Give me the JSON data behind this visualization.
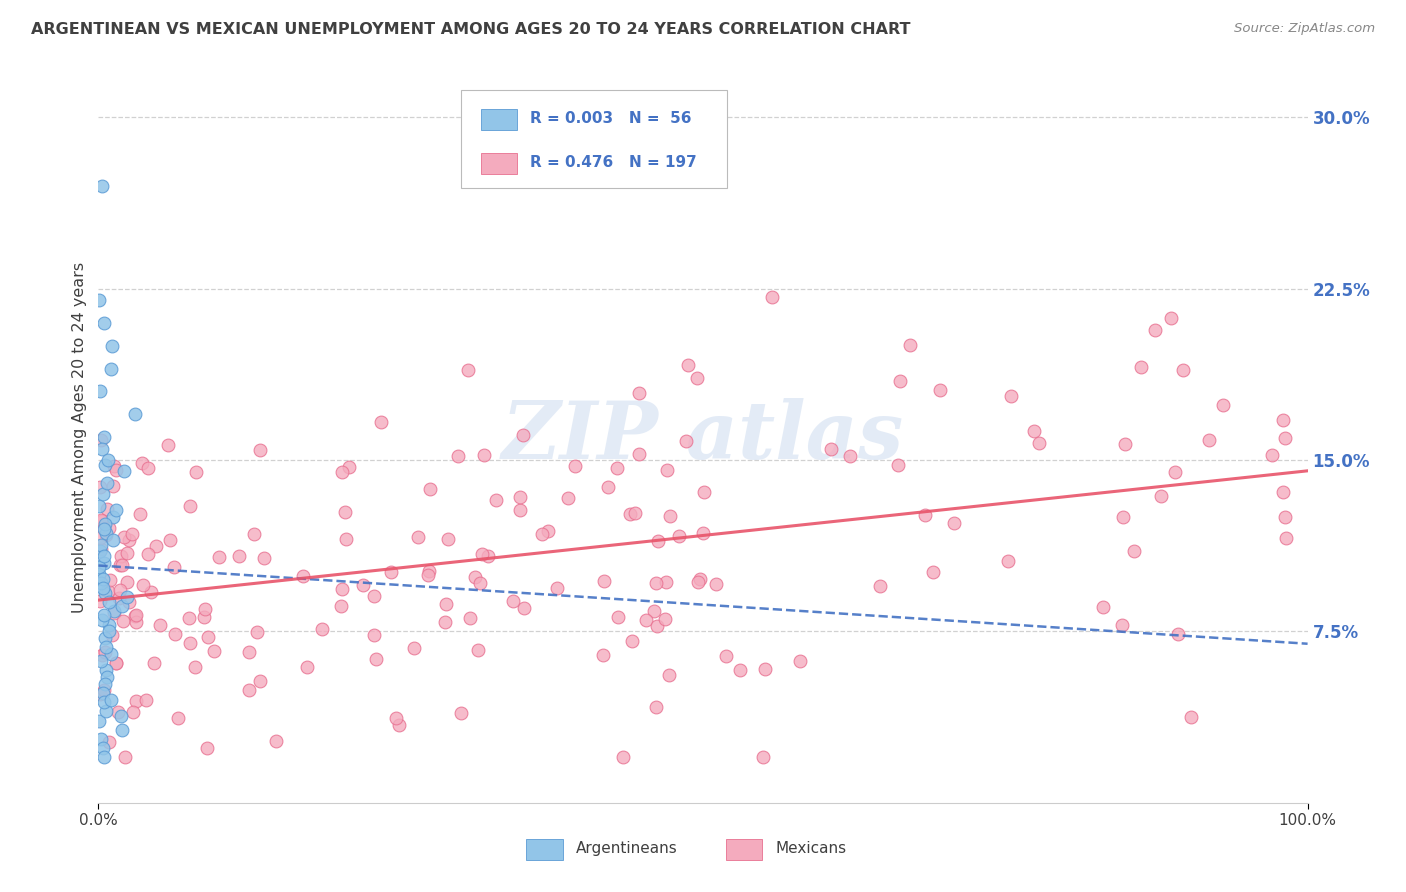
{
  "title": "ARGENTINEAN VS MEXICAN UNEMPLOYMENT AMONG AGES 20 TO 24 YEARS CORRELATION CHART",
  "source": "Source: ZipAtlas.com",
  "ylabel": "Unemployment Among Ages 20 to 24 years",
  "xlim": [
    0,
    1
  ],
  "ylim": [
    0,
    0.32
  ],
  "yticks": [
    0.075,
    0.15,
    0.225,
    0.3
  ],
  "ytick_labels": [
    "7.5%",
    "15.0%",
    "22.5%",
    "30.0%"
  ],
  "xtick_labels": [
    "0.0%",
    "100.0%"
  ],
  "legend_r_arg": "0.003",
  "legend_n_arg": "56",
  "legend_r_mex": "0.476",
  "legend_n_mex": "197",
  "color_arg": "#92C5E8",
  "color_mex": "#F4ABBE",
  "color_arg_edge": "#5B9BD5",
  "color_mex_edge": "#E87090",
  "color_arg_line": "#4472C4",
  "color_mex_line": "#E8546A",
  "background": "#FFFFFF",
  "grid_color": "#CCCCCC",
  "title_color": "#404040",
  "source_color": "#888888",
  "ylabel_color": "#404040",
  "tick_color": "#4472C4",
  "legend_text_color": "#4472C4",
  "watermark_color": "#C8D8EE"
}
